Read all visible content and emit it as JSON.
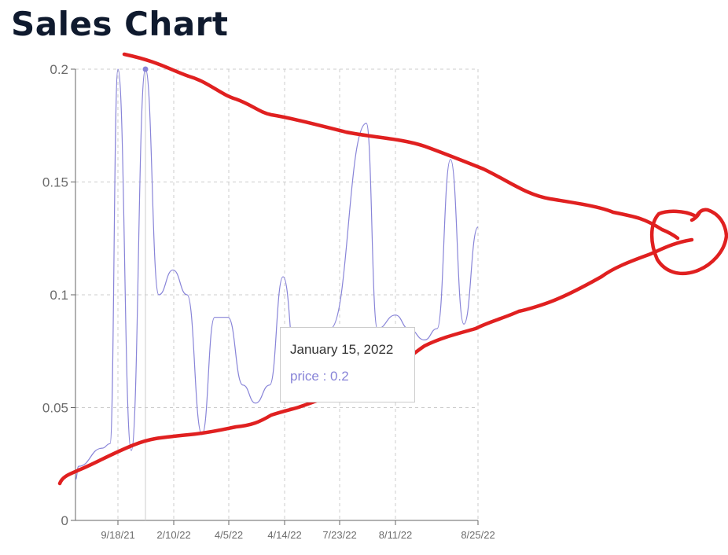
{
  "title": "Sales Chart",
  "chart_data": {
    "type": "line",
    "title": "Sales Chart",
    "xlabel": "",
    "ylabel": "",
    "ylim": [
      0,
      0.2
    ],
    "grid": true,
    "series": [
      {
        "name": "price",
        "color": "#8884d8"
      }
    ],
    "y_ticks": [
      "0",
      "0.05",
      "0.1",
      "0.15",
      "0.2"
    ],
    "x_tick_labels": [
      "9/18/21",
      "2/10/22",
      "4/5/22",
      "4/14/22",
      "7/23/22",
      "8/11/22",
      "8/25/22"
    ],
    "points": [
      0.018,
      0.024,
      0.032,
      0.034,
      0.2,
      0.031,
      0.2,
      0.1,
      0.111,
      0.1,
      0.038,
      0.09,
      0.09,
      0.06,
      0.052,
      0.06,
      0.108,
      0.065,
      0.085,
      0.085,
      0.176,
      0.085,
      0.091,
      0.085,
      0.08,
      0.085,
      0.16,
      0.087,
      0.13
    ],
    "tooltip": {
      "date": "January 15, 2022",
      "label": "price : 0.2",
      "point_index": 6
    }
  },
  "annotation": {
    "color": "#e02020"
  }
}
